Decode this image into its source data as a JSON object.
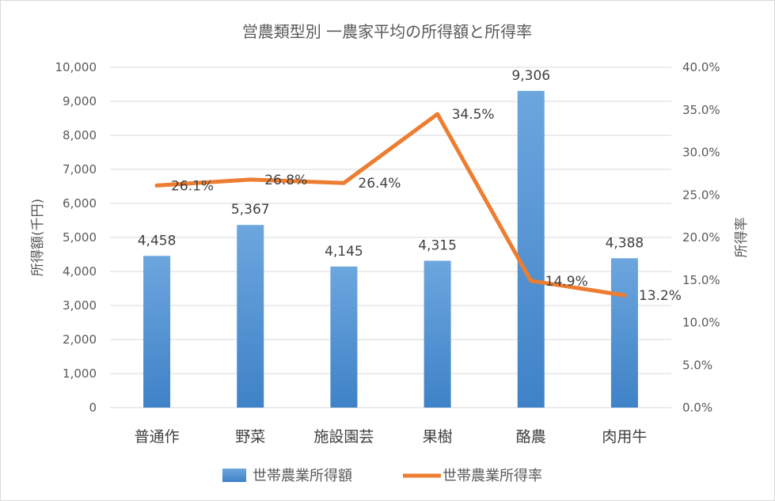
{
  "chart_data": {
    "type": "bar",
    "title": "営農類型別 一農家平均の所得額と所得率",
    "categories": [
      "普通作",
      "野菜",
      "施設園芸",
      "果樹",
      "酪農",
      "肉用牛"
    ],
    "series": [
      {
        "name": "世帯農業所得額",
        "type": "bar",
        "axis": "left",
        "color": "#5b9bd5",
        "values": [
          4458,
          5367,
          4145,
          4315,
          9306,
          4388
        ],
        "labels": [
          "4,458",
          "5,367",
          "4,145",
          "4,315",
          "9,306",
          "4,388"
        ]
      },
      {
        "name": "世帯農業所得率",
        "type": "line",
        "axis": "right",
        "color": "#ed7d31",
        "values": [
          26.1,
          26.8,
          26.4,
          34.5,
          14.9,
          13.2
        ],
        "labels": [
          "26.1%",
          "26.8%",
          "26.4%",
          "34.5%",
          "14.9%",
          "13.2%"
        ]
      }
    ],
    "ylabel": "所得額(千円)",
    "y2label": "所得率",
    "ylim": [
      0,
      10000
    ],
    "y2lim": [
      0,
      40
    ],
    "yticks": [
      "0",
      "1,000",
      "2,000",
      "3,000",
      "4,000",
      "5,000",
      "6,000",
      "7,000",
      "8,000",
      "9,000",
      "10,000"
    ],
    "y2ticks": [
      "0.0%",
      "5.0%",
      "10.0%",
      "15.0%",
      "20.0%",
      "25.0%",
      "30.0%",
      "35.0%",
      "40.0%"
    ],
    "grid": true,
    "legend_position": "bottom"
  }
}
